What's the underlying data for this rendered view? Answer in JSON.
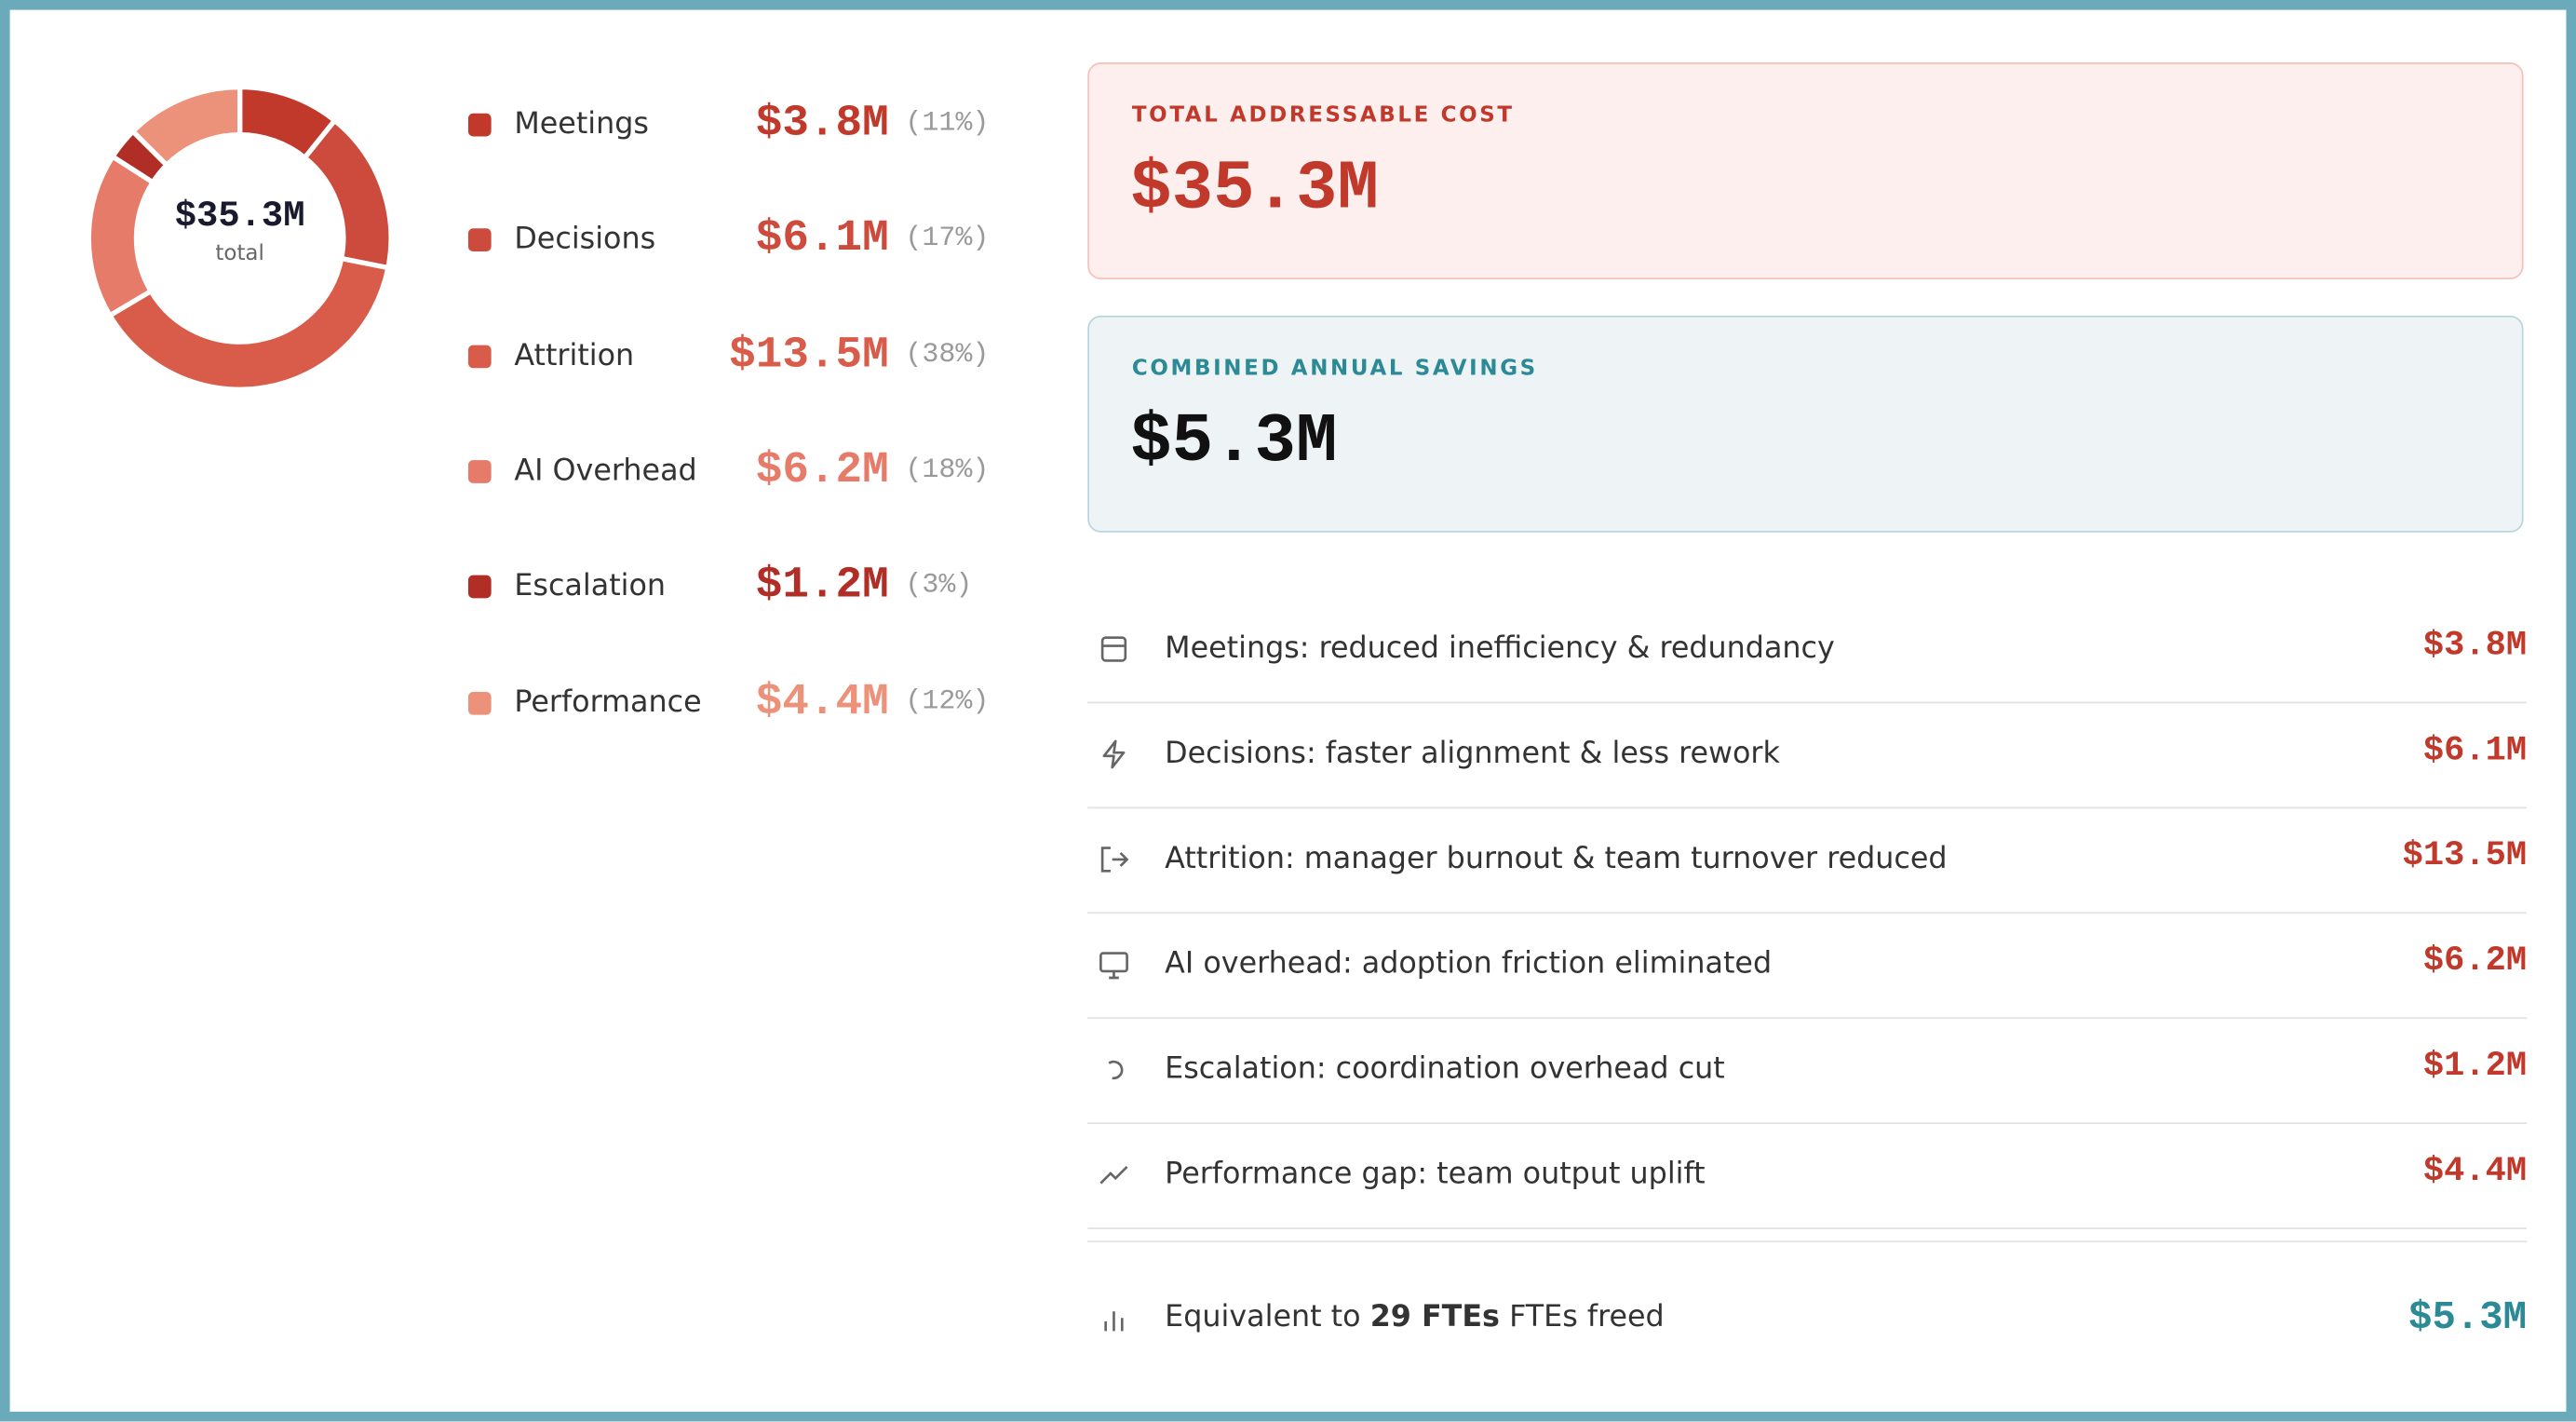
{
  "donut": {
    "type": "pie",
    "center_value": "$35.3M",
    "center_label": "total",
    "categories": [
      "Meetings",
      "Decisions",
      "Attrition",
      "AI Overhead",
      "Escalation",
      "Performance"
    ],
    "values": [
      3.8,
      6.1,
      13.5,
      6.2,
      1.2,
      4.4
    ],
    "value_labels": [
      "$3.8M",
      "$6.1M",
      "$13.5M",
      "$6.2M",
      "$1.2M",
      "$4.4M"
    ],
    "percent_labels": [
      "(11%)",
      "(17%)",
      "(38%)",
      "(18%)",
      "(3%)",
      "(12%)"
    ],
    "colors": [
      "#c0392b",
      "#cc4b3c",
      "#d95c4b",
      "#e67b6a",
      "#b02e26",
      "#ec917a"
    ]
  },
  "cards": [
    {
      "label": "TOTAL ADDRESSABLE COST",
      "value": "$35.3M"
    },
    {
      "label": "COMBINED ANNUAL SAVINGS",
      "value": "$5.3M"
    }
  ],
  "savings": [
    {
      "text": "Meetings: reduced inefficiency & redundancy",
      "value": "$3.8M"
    },
    {
      "text": "Decisions: faster alignment & less rework",
      "value": "$6.1M"
    },
    {
      "text": "Attrition: manager burnout & team turnover reduced",
      "value": "$13.5M"
    },
    {
      "text": "AI overhead: adoption friction eliminated",
      "value": "$6.2M"
    },
    {
      "text": "Escalation: coordination overhead cut",
      "value": "$1.2M"
    },
    {
      "text": "Performance gap: team output uplift",
      "value": "$4.4M"
    }
  ],
  "footer": {
    "prefix": "Equivalent to",
    "bold": "29 FTEs",
    "suffix": "FTEs freed",
    "value": "$5.3M"
  }
}
